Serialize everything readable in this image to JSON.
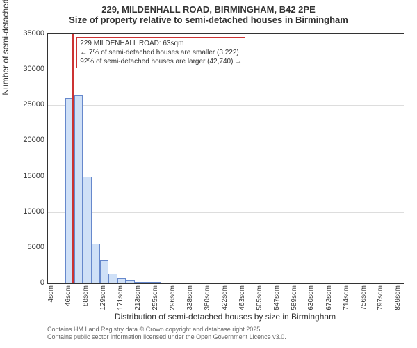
{
  "title": {
    "line1": "229, MILDENHALL ROAD, BIRMINGHAM, B42 2PE",
    "line2": "Size of property relative to semi-detached houses in Birmingham"
  },
  "chart": {
    "type": "histogram",
    "background_color": "#ffffff",
    "border_color": "#333333",
    "grid_color": "#dddddd",
    "bar_fill": "#cfe0f7",
    "bar_border": "#6688cc",
    "ref_line_color": "#cc3333",
    "ylim": [
      0,
      35000
    ],
    "ytick_step": 5000,
    "yticks": [
      0,
      5000,
      10000,
      15000,
      20000,
      25000,
      30000,
      35000
    ],
    "ylabel": "Number of semi-detached properties",
    "xlabel": "Distribution of semi-detached houses by size in Birmingham",
    "xlim": [
      4,
      860
    ],
    "xticks": [
      4,
      46,
      88,
      129,
      171,
      213,
      255,
      296,
      338,
      380,
      422,
      463,
      505,
      547,
      589,
      630,
      672,
      714,
      756,
      797,
      839
    ],
    "xtick_labels": [
      "4sqm",
      "46sqm",
      "88sqm",
      "129sqm",
      "171sqm",
      "213sqm",
      "255sqm",
      "296sqm",
      "338sqm",
      "380sqm",
      "422sqm",
      "463sqm",
      "505sqm",
      "547sqm",
      "589sqm",
      "630sqm",
      "672sqm",
      "714sqm",
      "756sqm",
      "797sqm",
      "839sqm"
    ],
    "bars": [
      {
        "x0": 46,
        "x1": 67,
        "y": 26000
      },
      {
        "x0": 67,
        "x1": 88,
        "y": 26400
      },
      {
        "x0": 88,
        "x1": 109,
        "y": 15000
      },
      {
        "x0": 109,
        "x1": 129,
        "y": 5600
      },
      {
        "x0": 129,
        "x1": 150,
        "y": 3200
      },
      {
        "x0": 150,
        "x1": 171,
        "y": 1400
      },
      {
        "x0": 171,
        "x1": 192,
        "y": 700
      },
      {
        "x0": 192,
        "x1": 213,
        "y": 350
      },
      {
        "x0": 213,
        "x1": 234,
        "y": 180
      },
      {
        "x0": 234,
        "x1": 255,
        "y": 90
      },
      {
        "x0": 255,
        "x1": 276,
        "y": 50
      }
    ],
    "reference_x": 63,
    "annotation": {
      "line1": "229 MILDENHALL ROAD: 63sqm",
      "line2": "← 7% of semi-detached houses are smaller (3,222)",
      "line3": "92% of semi-detached houses are larger (42,740) →",
      "border_color": "#cc3333",
      "fontsize": 10
    },
    "label_fontsize": 12,
    "tick_fontsize": 11
  },
  "footer": {
    "line1": "Contains HM Land Registry data © Crown copyright and database right 2025.",
    "line2": "Contains public sector information licensed under the Open Government Licence v3.0."
  }
}
